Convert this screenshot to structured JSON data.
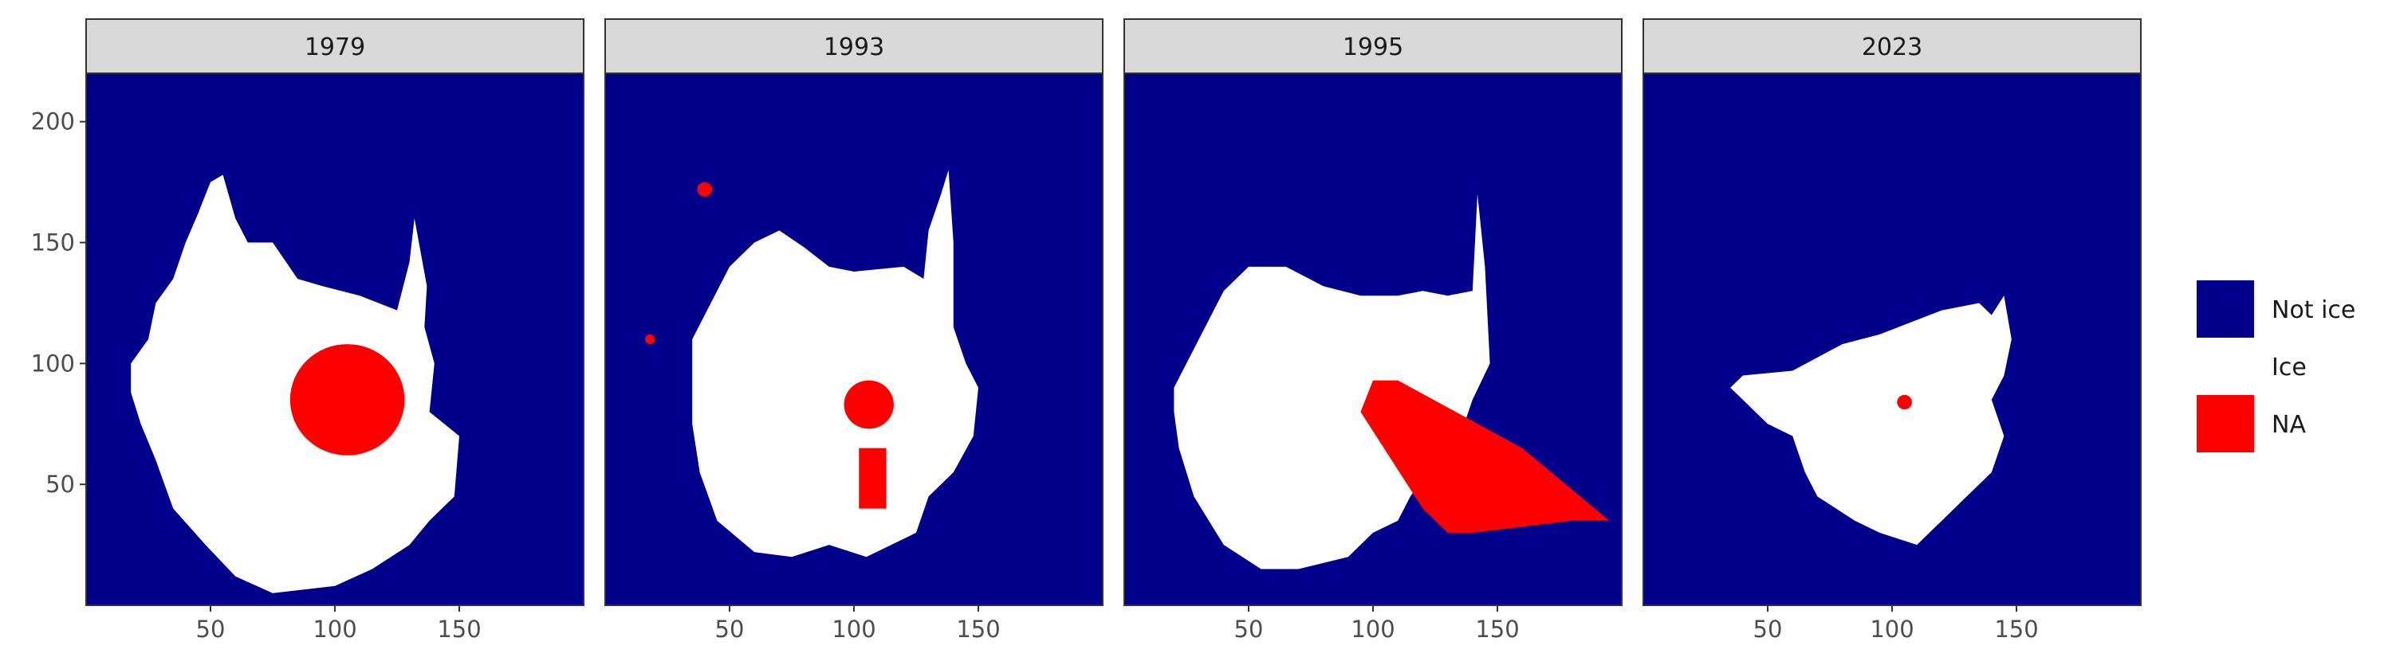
{
  "chart_data": {
    "type": "heatmap",
    "facets": [
      "1979",
      "1993",
      "1995",
      "2023"
    ],
    "x_ticks": [
      50,
      100,
      150
    ],
    "y_ticks": [
      50,
      100,
      150,
      200
    ],
    "xlim": [
      0,
      200
    ],
    "ylim": [
      0,
      220
    ],
    "legend": {
      "position": "right",
      "entries": [
        {
          "label": "Not ice",
          "color": "#00008B"
        },
        {
          "label": "Ice",
          "color": "#FFFFFF"
        },
        {
          "label": "NA",
          "color": "#FF0000"
        }
      ]
    },
    "colors": {
      "not_ice": "#00008B",
      "ice": "#FFFFFF",
      "na": "#FF0000",
      "strip_bg": "#D9D9D9",
      "panel_border": "#333333"
    },
    "panels": [
      {
        "year": "1979",
        "ice_polygon": [
          [
            18,
            88
          ],
          [
            18,
            100
          ],
          [
            25,
            110
          ],
          [
            28,
            125
          ],
          [
            35,
            135
          ],
          [
            40,
            150
          ],
          [
            45,
            162
          ],
          [
            50,
            175
          ],
          [
            55,
            178
          ],
          [
            60,
            160
          ],
          [
            65,
            150
          ],
          [
            75,
            150
          ],
          [
            85,
            135
          ],
          [
            95,
            132
          ],
          [
            110,
            128
          ],
          [
            125,
            122
          ],
          [
            130,
            142
          ],
          [
            132,
            160
          ],
          [
            137,
            132
          ],
          [
            136,
            115
          ],
          [
            140,
            100
          ],
          [
            138,
            80
          ],
          [
            150,
            70
          ],
          [
            148,
            45
          ],
          [
            138,
            35
          ],
          [
            130,
            25
          ],
          [
            115,
            15
          ],
          [
            100,
            8
          ],
          [
            75,
            5
          ],
          [
            60,
            12
          ],
          [
            48,
            25
          ],
          [
            35,
            40
          ],
          [
            28,
            60
          ],
          [
            22,
            75
          ]
        ],
        "na_regions": [
          {
            "shape": "circle",
            "cx": 105,
            "cy": 85,
            "r": 23
          }
        ]
      },
      {
        "year": "1993",
        "ice_polygon": [
          [
            35,
            95
          ],
          [
            35,
            110
          ],
          [
            40,
            120
          ],
          [
            50,
            140
          ],
          [
            60,
            150
          ],
          [
            70,
            155
          ],
          [
            80,
            148
          ],
          [
            90,
            140
          ],
          [
            100,
            138
          ],
          [
            120,
            140
          ],
          [
            128,
            135
          ],
          [
            130,
            155
          ],
          [
            135,
            170
          ],
          [
            138,
            180
          ],
          [
            140,
            150
          ],
          [
            140,
            115
          ],
          [
            145,
            100
          ],
          [
            150,
            90
          ],
          [
            148,
            70
          ],
          [
            140,
            55
          ],
          [
            130,
            45
          ],
          [
            125,
            30
          ],
          [
            115,
            25
          ],
          [
            105,
            20
          ],
          [
            90,
            25
          ],
          [
            75,
            20
          ],
          [
            60,
            22
          ],
          [
            45,
            35
          ],
          [
            38,
            55
          ],
          [
            35,
            75
          ]
        ],
        "na_regions": [
          {
            "shape": "circle",
            "cx": 106,
            "cy": 83,
            "r": 10
          },
          {
            "shape": "rect",
            "x0": 102,
            "x1": 113,
            "y0": 40,
            "y1": 65
          },
          {
            "shape": "circle",
            "cx": 40,
            "cy": 172,
            "r": 3
          },
          {
            "shape": "circle",
            "cx": 18,
            "cy": 110,
            "r": 2
          }
        ]
      },
      {
        "year": "1995",
        "ice_polygon": [
          [
            20,
            90
          ],
          [
            25,
            100
          ],
          [
            30,
            110
          ],
          [
            40,
            130
          ],
          [
            50,
            140
          ],
          [
            65,
            140
          ],
          [
            80,
            132
          ],
          [
            95,
            128
          ],
          [
            110,
            128
          ],
          [
            120,
            130
          ],
          [
            130,
            128
          ],
          [
            140,
            130
          ],
          [
            142,
            170
          ],
          [
            145,
            140
          ],
          [
            147,
            100
          ],
          [
            140,
            85
          ],
          [
            135,
            70
          ],
          [
            125,
            60
          ],
          [
            115,
            45
          ],
          [
            110,
            35
          ],
          [
            100,
            30
          ],
          [
            90,
            20
          ],
          [
            70,
            15
          ],
          [
            55,
            15
          ],
          [
            40,
            25
          ],
          [
            28,
            45
          ],
          [
            22,
            65
          ],
          [
            20,
            80
          ]
        ],
        "na_regions": [
          {
            "shape": "polygon",
            "points": [
              [
                95,
                80
              ],
              [
                100,
                93
              ],
              [
                110,
                93
              ],
              [
                160,
                65
              ],
              [
                195,
                35
              ],
              [
                180,
                35
              ],
              [
                140,
                30
              ],
              [
                130,
                30
              ],
              [
                120,
                40
              ]
            ]
          }
        ]
      },
      {
        "year": "2023",
        "ice_polygon": [
          [
            35,
            90
          ],
          [
            40,
            95
          ],
          [
            60,
            97
          ],
          [
            80,
            108
          ],
          [
            95,
            112
          ],
          [
            120,
            122
          ],
          [
            135,
            125
          ],
          [
            140,
            120
          ],
          [
            145,
            128
          ],
          [
            148,
            110
          ],
          [
            145,
            95
          ],
          [
            140,
            85
          ],
          [
            145,
            70
          ],
          [
            140,
            55
          ],
          [
            130,
            45
          ],
          [
            120,
            35
          ],
          [
            110,
            25
          ],
          [
            95,
            30
          ],
          [
            85,
            35
          ],
          [
            70,
            45
          ],
          [
            65,
            55
          ],
          [
            60,
            70
          ],
          [
            50,
            75
          ],
          [
            45,
            80
          ],
          [
            40,
            85
          ]
        ],
        "na_regions": [
          {
            "shape": "circle",
            "cx": 105,
            "cy": 84,
            "r": 3
          }
        ]
      }
    ]
  }
}
